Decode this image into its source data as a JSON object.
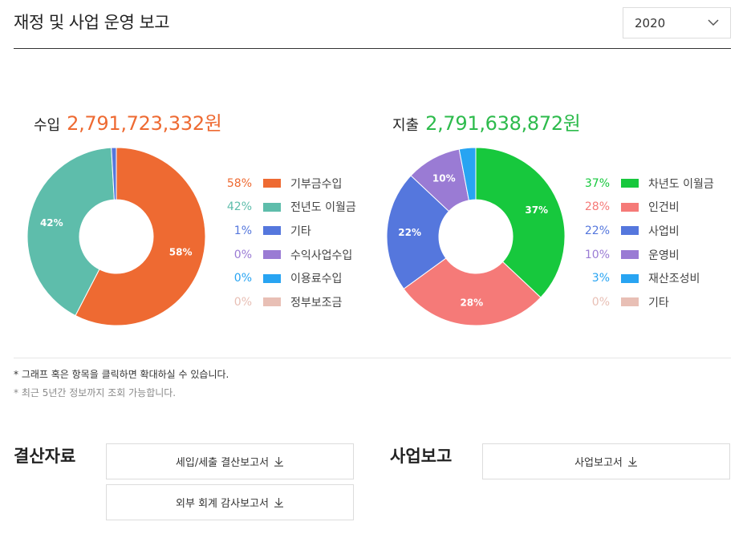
{
  "header": {
    "title": "재정 및 사업 운영 보고",
    "year_select": {
      "value": "2020"
    }
  },
  "income": {
    "label": "수입",
    "total": "2,791,723,332원",
    "total_color": "#ee6a32",
    "items": [
      {
        "pct": "58%",
        "name": "기부금수입",
        "color": "#ee6a32"
      },
      {
        "pct": "42%",
        "name": "전년도 이월금",
        "color": "#5ebdab"
      },
      {
        "pct": "1%",
        "name": "기타",
        "color": "#5577dd"
      },
      {
        "pct": "0%",
        "name": "수익사업수입",
        "color": "#9a7bd4"
      },
      {
        "pct": "0%",
        "name": "이용료수입",
        "color": "#28a4f2"
      },
      {
        "pct": "0%",
        "name": "정부보조금",
        "color": "#e8bfb5"
      }
    ]
  },
  "expense": {
    "label": "지출",
    "total": "2,791,638,872원",
    "total_color": "#2dbb4c",
    "items": [
      {
        "pct": "37%",
        "name": "차년도 이월금",
        "color": "#17c83d"
      },
      {
        "pct": "28%",
        "name": "인건비",
        "color": "#f57a78"
      },
      {
        "pct": "22%",
        "name": "사업비",
        "color": "#5577dd"
      },
      {
        "pct": "10%",
        "name": "운영비",
        "color": "#9a7bd4"
      },
      {
        "pct": "3%",
        "name": "재산조성비",
        "color": "#28a4f2"
      },
      {
        "pct": "0%",
        "name": "기타",
        "color": "#e8bfb5"
      }
    ]
  },
  "chart_data": [
    {
      "type": "pie",
      "categories": [
        "기부금수입",
        "전년도 이월금",
        "기타",
        "수익사업수입",
        "이용료수입",
        "정부보조금"
      ],
      "values": [
        57.6,
        41.5,
        0.9,
        0,
        0,
        0
      ],
      "slice_labels": [
        "58%",
        "42%",
        "",
        "",
        "",
        ""
      ],
      "colors": [
        "#ee6a32",
        "#5ebdab",
        "#5577dd",
        "#9a7bd4",
        "#28a4f2",
        "#e8bfb5"
      ]
    },
    {
      "type": "pie",
      "categories": [
        "차년도 이월금",
        "인건비",
        "사업비",
        "운영비",
        "재산조성비",
        "기타"
      ],
      "values": [
        37,
        28,
        22,
        10,
        3,
        0
      ],
      "slice_labels": [
        "37%",
        "28%",
        "22%",
        "10%",
        "",
        ""
      ],
      "colors": [
        "#17c83d",
        "#f57a78",
        "#5577dd",
        "#9a7bd4",
        "#28a4f2",
        "#e8bfb5"
      ]
    }
  ],
  "notes": {
    "click_hint": "* 그래프 혹은 항목을 클릭하면 확대하실 수 있습니다.",
    "range_hint": "* 최근 5년간 정보까지 조회 가능합니다."
  },
  "settlement": {
    "heading": "결산자료",
    "buttons": [
      "세입/세출 결산보고서",
      "외부 회계 감사보고서"
    ]
  },
  "business": {
    "heading": "사업보고",
    "buttons": [
      "사업보고서"
    ]
  }
}
